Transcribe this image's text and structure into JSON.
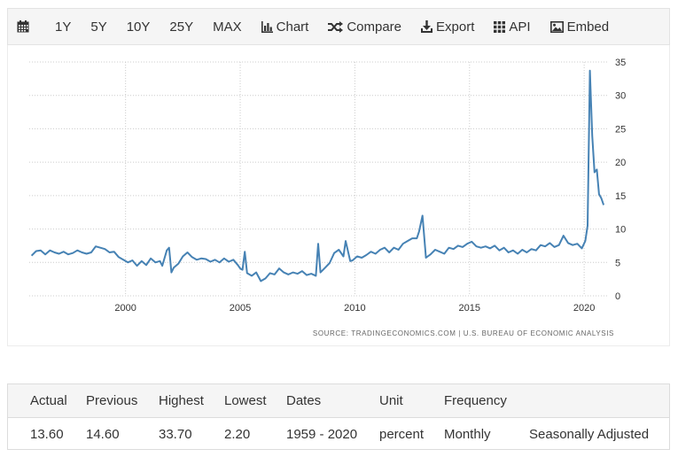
{
  "toolbar": {
    "calendar_icon": "calendar-icon",
    "ranges": [
      "1Y",
      "5Y",
      "10Y",
      "25Y",
      "MAX"
    ],
    "chart_label": "Chart",
    "compare_label": "Compare",
    "export_label": "Export",
    "api_label": "API",
    "embed_label": "Embed"
  },
  "source": "SOURCE: TRADINGECONOMICS.COM | U.S. BUREAU OF ECONOMIC ANALYSIS",
  "colors": {
    "line": "#4682b4",
    "grid": "#cccccc"
  },
  "chart_data": {
    "type": "line",
    "title": "",
    "xlabel": "",
    "ylabel": "",
    "xlim": [
      1995.8,
      2021.0
    ],
    "ylim": [
      0,
      35
    ],
    "x_ticks": [
      "2000",
      "2005",
      "2010",
      "2015",
      "2020"
    ],
    "y_ticks": [
      "0",
      "5",
      "10",
      "15",
      "20",
      "25",
      "30",
      "35"
    ],
    "y_axis_side": "right",
    "grid": true,
    "series": [
      {
        "name": "",
        "points": [
          [
            1995.9,
            6.0
          ],
          [
            1996.1,
            6.7
          ],
          [
            1996.3,
            6.8
          ],
          [
            1996.5,
            6.2
          ],
          [
            1996.7,
            6.8
          ],
          [
            1996.9,
            6.5
          ],
          [
            1997.1,
            6.3
          ],
          [
            1997.3,
            6.6
          ],
          [
            1997.5,
            6.2
          ],
          [
            1997.7,
            6.4
          ],
          [
            1997.9,
            6.8
          ],
          [
            1998.1,
            6.5
          ],
          [
            1998.3,
            6.3
          ],
          [
            1998.5,
            6.5
          ],
          [
            1998.7,
            7.4
          ],
          [
            1998.9,
            7.2
          ],
          [
            1999.1,
            7.0
          ],
          [
            1999.3,
            6.5
          ],
          [
            1999.5,
            6.6
          ],
          [
            1999.7,
            5.8
          ],
          [
            1999.9,
            5.4
          ],
          [
            2000.1,
            5.0
          ],
          [
            2000.3,
            5.3
          ],
          [
            2000.5,
            4.5
          ],
          [
            2000.7,
            5.2
          ],
          [
            2000.9,
            4.6
          ],
          [
            2001.1,
            5.6
          ],
          [
            2001.3,
            5.0
          ],
          [
            2001.5,
            5.2
          ],
          [
            2001.6,
            4.5
          ],
          [
            2001.8,
            6.8
          ],
          [
            2001.9,
            7.2
          ],
          [
            2002.0,
            3.5
          ],
          [
            2002.1,
            4.2
          ],
          [
            2002.3,
            4.8
          ],
          [
            2002.5,
            5.9
          ],
          [
            2002.7,
            6.5
          ],
          [
            2002.9,
            5.8
          ],
          [
            2003.1,
            5.4
          ],
          [
            2003.3,
            5.6
          ],
          [
            2003.5,
            5.5
          ],
          [
            2003.7,
            5.1
          ],
          [
            2003.9,
            5.4
          ],
          [
            2004.1,
            5.0
          ],
          [
            2004.3,
            5.6
          ],
          [
            2004.5,
            5.1
          ],
          [
            2004.7,
            5.4
          ],
          [
            2004.9,
            4.6
          ],
          [
            2005.0,
            4.1
          ],
          [
            2005.1,
            3.9
          ],
          [
            2005.2,
            6.6
          ],
          [
            2005.3,
            3.4
          ],
          [
            2005.5,
            3.0
          ],
          [
            2005.7,
            3.5
          ],
          [
            2005.9,
            2.2
          ],
          [
            2006.1,
            2.6
          ],
          [
            2006.3,
            3.4
          ],
          [
            2006.5,
            3.2
          ],
          [
            2006.7,
            4.1
          ],
          [
            2006.9,
            3.5
          ],
          [
            2007.1,
            3.2
          ],
          [
            2007.3,
            3.5
          ],
          [
            2007.5,
            3.3
          ],
          [
            2007.7,
            3.7
          ],
          [
            2007.9,
            3.1
          ],
          [
            2008.1,
            3.3
          ],
          [
            2008.3,
            3.0
          ],
          [
            2008.4,
            7.8
          ],
          [
            2008.5,
            3.5
          ],
          [
            2008.7,
            4.2
          ],
          [
            2008.9,
            4.9
          ],
          [
            2009.1,
            6.4
          ],
          [
            2009.3,
            6.9
          ],
          [
            2009.5,
            5.9
          ],
          [
            2009.6,
            8.2
          ],
          [
            2009.8,
            5.2
          ],
          [
            2009.9,
            5.3
          ],
          [
            2010.1,
            5.9
          ],
          [
            2010.3,
            5.7
          ],
          [
            2010.5,
            6.1
          ],
          [
            2010.7,
            6.6
          ],
          [
            2010.9,
            6.3
          ],
          [
            2011.1,
            6.9
          ],
          [
            2011.3,
            7.2
          ],
          [
            2011.5,
            6.5
          ],
          [
            2011.7,
            7.2
          ],
          [
            2011.9,
            6.9
          ],
          [
            2012.1,
            7.8
          ],
          [
            2012.3,
            8.2
          ],
          [
            2012.5,
            8.6
          ],
          [
            2012.7,
            8.6
          ],
          [
            2012.8,
            9.6
          ],
          [
            2012.95,
            12.0
          ],
          [
            2013.1,
            5.7
          ],
          [
            2013.3,
            6.2
          ],
          [
            2013.5,
            6.9
          ],
          [
            2013.7,
            6.6
          ],
          [
            2013.9,
            6.3
          ],
          [
            2014.1,
            7.2
          ],
          [
            2014.3,
            7.0
          ],
          [
            2014.5,
            7.5
          ],
          [
            2014.7,
            7.3
          ],
          [
            2014.9,
            7.8
          ],
          [
            2015.1,
            8.1
          ],
          [
            2015.3,
            7.4
          ],
          [
            2015.5,
            7.2
          ],
          [
            2015.7,
            7.4
          ],
          [
            2015.9,
            7.1
          ],
          [
            2016.1,
            7.5
          ],
          [
            2016.3,
            6.8
          ],
          [
            2016.5,
            7.2
          ],
          [
            2016.7,
            6.5
          ],
          [
            2016.9,
            6.8
          ],
          [
            2017.1,
            6.3
          ],
          [
            2017.3,
            6.9
          ],
          [
            2017.5,
            6.5
          ],
          [
            2017.7,
            7.0
          ],
          [
            2017.9,
            6.8
          ],
          [
            2018.1,
            7.6
          ],
          [
            2018.3,
            7.4
          ],
          [
            2018.5,
            7.9
          ],
          [
            2018.7,
            7.3
          ],
          [
            2018.9,
            7.6
          ],
          [
            2019.1,
            9.0
          ],
          [
            2019.3,
            7.9
          ],
          [
            2019.5,
            7.6
          ],
          [
            2019.7,
            7.8
          ],
          [
            2019.9,
            7.1
          ],
          [
            2020.05,
            8.2
          ],
          [
            2020.15,
            10.5
          ],
          [
            2020.25,
            33.7
          ],
          [
            2020.35,
            24.0
          ],
          [
            2020.45,
            18.5
          ],
          [
            2020.55,
            18.9
          ],
          [
            2020.65,
            15.2
          ],
          [
            2020.75,
            14.6
          ],
          [
            2020.85,
            13.6
          ]
        ]
      }
    ]
  },
  "stats": {
    "headers": [
      "Actual",
      "Previous",
      "Highest",
      "Lowest",
      "Dates",
      "Unit",
      "Frequency",
      ""
    ],
    "values": [
      "13.60",
      "14.60",
      "33.70",
      "2.20",
      "1959 - 2020",
      "percent",
      "Monthly",
      "Seasonally Adjusted"
    ]
  }
}
